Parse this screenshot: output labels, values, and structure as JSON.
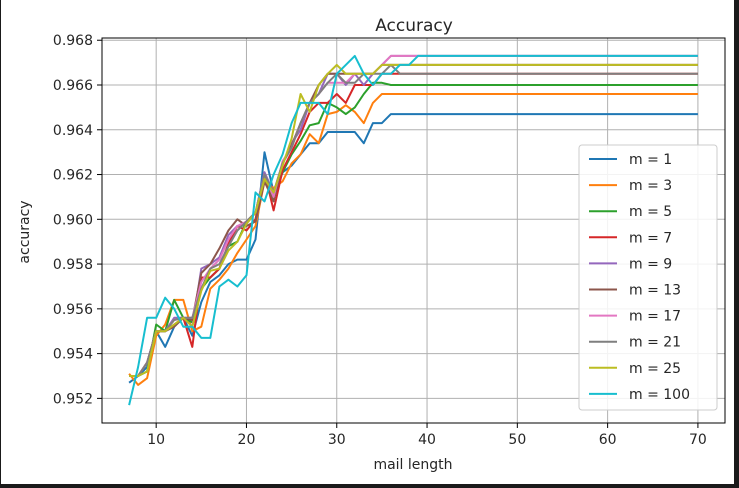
{
  "chart_data": {
    "type": "line",
    "title": "Accuracy",
    "xlabel": "mail length",
    "ylabel": "accuracy",
    "xlim": [
      4,
      73
    ],
    "ylim": [
      0.9509,
      0.9681
    ],
    "grid": true,
    "legend_position": "center-right",
    "x_ticks": [
      10,
      20,
      30,
      40,
      50,
      60,
      70
    ],
    "y_ticks": [
      0.952,
      0.954,
      0.956,
      0.958,
      0.96,
      0.962,
      0.964,
      0.966,
      0.968
    ],
    "x_tick_labels": [
      "10",
      "20",
      "30",
      "40",
      "50",
      "60",
      "70"
    ],
    "y_tick_labels": [
      "0.952",
      "0.954",
      "0.956",
      "0.958",
      "0.960",
      "0.962",
      "0.964",
      "0.966",
      "0.968"
    ],
    "series": [
      {
        "name": "m = 1",
        "color": "#1f77b4",
        "x": [
          7,
          8,
          9,
          10,
          11,
          12,
          13,
          14,
          15,
          16,
          17,
          18,
          19,
          20,
          21,
          22,
          23,
          24,
          25,
          26,
          27,
          28,
          29,
          30,
          31,
          32,
          33,
          34,
          35,
          36,
          37,
          38,
          39,
          40,
          50,
          60,
          70
        ],
        "y": [
          0.9527,
          0.953,
          0.9534,
          0.955,
          0.9543,
          0.9552,
          0.9556,
          0.9548,
          0.9563,
          0.9572,
          0.9575,
          0.958,
          0.9582,
          0.9582,
          0.9591,
          0.963,
          0.9612,
          0.9621,
          0.9624,
          0.9629,
          0.9634,
          0.9634,
          0.9639,
          0.9639,
          0.9639,
          0.9639,
          0.9634,
          0.9643,
          0.9643,
          0.9647,
          0.9647,
          0.9647,
          0.9647,
          0.9647,
          0.9647,
          0.9647,
          0.9647
        ]
      },
      {
        "name": "m = 3",
        "color": "#ff7f0e",
        "x": [
          7,
          8,
          9,
          10,
          11,
          12,
          13,
          14,
          15,
          16,
          17,
          18,
          19,
          20,
          21,
          22,
          23,
          24,
          25,
          26,
          27,
          28,
          29,
          30,
          31,
          32,
          33,
          34,
          35,
          36,
          37,
          38,
          39,
          40,
          50,
          60,
          70
        ],
        "y": [
          0.9531,
          0.9526,
          0.9529,
          0.9548,
          0.9553,
          0.9564,
          0.9564,
          0.955,
          0.9552,
          0.9569,
          0.9573,
          0.9578,
          0.9585,
          0.9591,
          0.9597,
          0.9617,
          0.9614,
          0.9617,
          0.9625,
          0.9629,
          0.9638,
          0.9634,
          0.9647,
          0.9648,
          0.9651,
          0.9648,
          0.9643,
          0.9652,
          0.9656,
          0.9656,
          0.9656,
          0.9656,
          0.9656,
          0.9656,
          0.9656,
          0.9656,
          0.9656
        ]
      },
      {
        "name": "m = 5",
        "color": "#2ca02c",
        "x": [
          7,
          8,
          9,
          10,
          11,
          12,
          13,
          14,
          15,
          16,
          17,
          18,
          19,
          20,
          21,
          22,
          23,
          24,
          25,
          26,
          27,
          28,
          29,
          30,
          31,
          32,
          33,
          34,
          35,
          36,
          37,
          38,
          39,
          40,
          50,
          60,
          70
        ],
        "y": [
          0.953,
          0.953,
          0.9532,
          0.9553,
          0.955,
          0.9564,
          0.9556,
          0.9554,
          0.9569,
          0.9574,
          0.9578,
          0.9588,
          0.959,
          0.9599,
          0.9603,
          0.962,
          0.961,
          0.9621,
          0.9629,
          0.9635,
          0.9642,
          0.9643,
          0.9652,
          0.965,
          0.9647,
          0.965,
          0.9656,
          0.9661,
          0.9661,
          0.966,
          0.966,
          0.966,
          0.966,
          0.966,
          0.966,
          0.966,
          0.966
        ]
      },
      {
        "name": "m = 7",
        "color": "#d62728",
        "x": [
          7,
          8,
          9,
          10,
          11,
          12,
          13,
          14,
          15,
          16,
          17,
          18,
          19,
          20,
          21,
          22,
          23,
          24,
          25,
          26,
          27,
          28,
          29,
          30,
          31,
          32,
          33,
          34,
          35,
          36,
          37,
          38,
          39,
          40,
          50,
          60,
          70
        ],
        "y": [
          0.953,
          0.953,
          0.9536,
          0.955,
          0.955,
          0.9553,
          0.9556,
          0.9543,
          0.9574,
          0.9574,
          0.9578,
          0.9589,
          0.9597,
          0.9595,
          0.96,
          0.9621,
          0.9604,
          0.9622,
          0.963,
          0.9638,
          0.9648,
          0.9652,
          0.9652,
          0.9656,
          0.9652,
          0.966,
          0.966,
          0.966,
          0.9665,
          0.9665,
          0.9665,
          0.9665,
          0.9665,
          0.9665,
          0.9665,
          0.9665,
          0.9665
        ]
      },
      {
        "name": "m = 9",
        "color": "#9467bd",
        "x": [
          7,
          8,
          9,
          10,
          11,
          12,
          13,
          14,
          15,
          16,
          17,
          18,
          19,
          20,
          21,
          22,
          23,
          24,
          25,
          26,
          27,
          28,
          29,
          30,
          31,
          32,
          33,
          34,
          35,
          36,
          37,
          38,
          39,
          40,
          50,
          60,
          70
        ],
        "y": [
          0.953,
          0.953,
          0.9536,
          0.955,
          0.955,
          0.9556,
          0.9556,
          0.9552,
          0.9578,
          0.958,
          0.9583,
          0.9593,
          0.9597,
          0.9598,
          0.9603,
          0.9621,
          0.9612,
          0.9625,
          0.9634,
          0.964,
          0.9652,
          0.9656,
          0.9665,
          0.9665,
          0.966,
          0.9665,
          0.966,
          0.9665,
          0.9669,
          0.9673,
          0.9673,
          0.9673,
          0.9673,
          0.9673,
          0.9673,
          0.9673,
          0.9673
        ]
      },
      {
        "name": "m = 13",
        "color": "#8c564b",
        "x": [
          7,
          8,
          9,
          10,
          11,
          12,
          13,
          14,
          15,
          16,
          17,
          18,
          19,
          20,
          21,
          22,
          23,
          24,
          25,
          26,
          27,
          28,
          29,
          30,
          31,
          32,
          33,
          34,
          35,
          36,
          37,
          38,
          39,
          40,
          50,
          60,
          70
        ],
        "y": [
          0.953,
          0.953,
          0.9536,
          0.955,
          0.955,
          0.9552,
          0.9556,
          0.9555,
          0.9576,
          0.958,
          0.9587,
          0.9595,
          0.96,
          0.9597,
          0.9599,
          0.9617,
          0.9608,
          0.9625,
          0.9633,
          0.9643,
          0.9652,
          0.966,
          0.9665,
          0.9665,
          0.9665,
          0.9665,
          0.9665,
          0.9665,
          0.9669,
          0.9669,
          0.9669,
          0.9669,
          0.9669,
          0.9669,
          0.9669,
          0.9669,
          0.9669
        ]
      },
      {
        "name": "m = 17",
        "color": "#e377c2",
        "x": [
          7,
          8,
          9,
          10,
          11,
          12,
          13,
          14,
          15,
          16,
          17,
          18,
          19,
          20,
          21,
          22,
          23,
          24,
          25,
          26,
          27,
          28,
          29,
          30,
          31,
          32,
          33,
          34,
          35,
          36,
          37,
          38,
          39,
          40,
          50,
          60,
          70
        ],
        "y": [
          0.953,
          0.953,
          0.9536,
          0.955,
          0.955,
          0.9555,
          0.9556,
          0.9556,
          0.9572,
          0.9578,
          0.9582,
          0.9591,
          0.9597,
          0.9599,
          0.9603,
          0.962,
          0.961,
          0.9626,
          0.9632,
          0.9643,
          0.9652,
          0.9656,
          0.9661,
          0.9661,
          0.9661,
          0.9665,
          0.9665,
          0.9665,
          0.9669,
          0.9673,
          0.9673,
          0.9673,
          0.9673,
          0.9673,
          0.9673,
          0.9673,
          0.9673
        ]
      },
      {
        "name": "m = 21",
        "color": "#7f7f7f",
        "x": [
          7,
          8,
          9,
          10,
          11,
          12,
          13,
          14,
          15,
          16,
          17,
          18,
          19,
          20,
          21,
          22,
          23,
          24,
          25,
          26,
          27,
          28,
          29,
          30,
          31,
          32,
          33,
          34,
          35,
          36,
          37,
          38,
          39,
          40,
          50,
          60,
          70
        ],
        "y": [
          0.953,
          0.953,
          0.9536,
          0.955,
          0.955,
          0.9555,
          0.9556,
          0.9556,
          0.9569,
          0.9578,
          0.958,
          0.9588,
          0.9595,
          0.9599,
          0.9603,
          0.962,
          0.9612,
          0.9625,
          0.9632,
          0.9643,
          0.9652,
          0.9656,
          0.9661,
          0.9665,
          0.9661,
          0.9661,
          0.9665,
          0.9665,
          0.9665,
          0.9669,
          0.9665,
          0.9665,
          0.9665,
          0.9665,
          0.9665,
          0.9665,
          0.9665
        ]
      },
      {
        "name": "m = 25",
        "color": "#bcbd22",
        "x": [
          7,
          8,
          9,
          10,
          11,
          12,
          13,
          14,
          15,
          16,
          17,
          18,
          19,
          20,
          21,
          22,
          23,
          24,
          25,
          26,
          27,
          28,
          29,
          30,
          31,
          32,
          33,
          34,
          35,
          36,
          37,
          38,
          39,
          40,
          50,
          60,
          70
        ],
        "y": [
          0.953,
          0.953,
          0.9532,
          0.955,
          0.955,
          0.9553,
          0.9556,
          0.9552,
          0.9568,
          0.9577,
          0.9578,
          0.9586,
          0.959,
          0.9598,
          0.9603,
          0.9618,
          0.9612,
          0.9624,
          0.9636,
          0.9656,
          0.9648,
          0.966,
          0.9665,
          0.9669,
          0.9665,
          0.9665,
          0.9665,
          0.9665,
          0.9669,
          0.9669,
          0.9669,
          0.9669,
          0.9669,
          0.9669,
          0.9669,
          0.9669,
          0.9669
        ]
      },
      {
        "name": "m = 100",
        "color": "#17becf",
        "x": [
          7,
          8,
          9,
          10,
          11,
          12,
          13,
          14,
          15,
          16,
          17,
          18,
          19,
          20,
          21,
          22,
          23,
          24,
          25,
          26,
          27,
          28,
          29,
          30,
          31,
          32,
          33,
          34,
          35,
          36,
          37,
          38,
          39,
          40,
          50,
          60,
          70
        ],
        "y": [
          0.9517,
          0.9534,
          0.9556,
          0.9556,
          0.9565,
          0.956,
          0.9552,
          0.9552,
          0.9547,
          0.9547,
          0.957,
          0.9573,
          0.957,
          0.9575,
          0.9612,
          0.9608,
          0.962,
          0.9629,
          0.9643,
          0.9652,
          0.9652,
          0.9652,
          0.9647,
          0.9665,
          0.9669,
          0.9673,
          0.9665,
          0.966,
          0.9665,
          0.9665,
          0.9669,
          0.9669,
          0.9673,
          0.9673,
          0.9673,
          0.9673,
          0.9673
        ]
      }
    ]
  }
}
